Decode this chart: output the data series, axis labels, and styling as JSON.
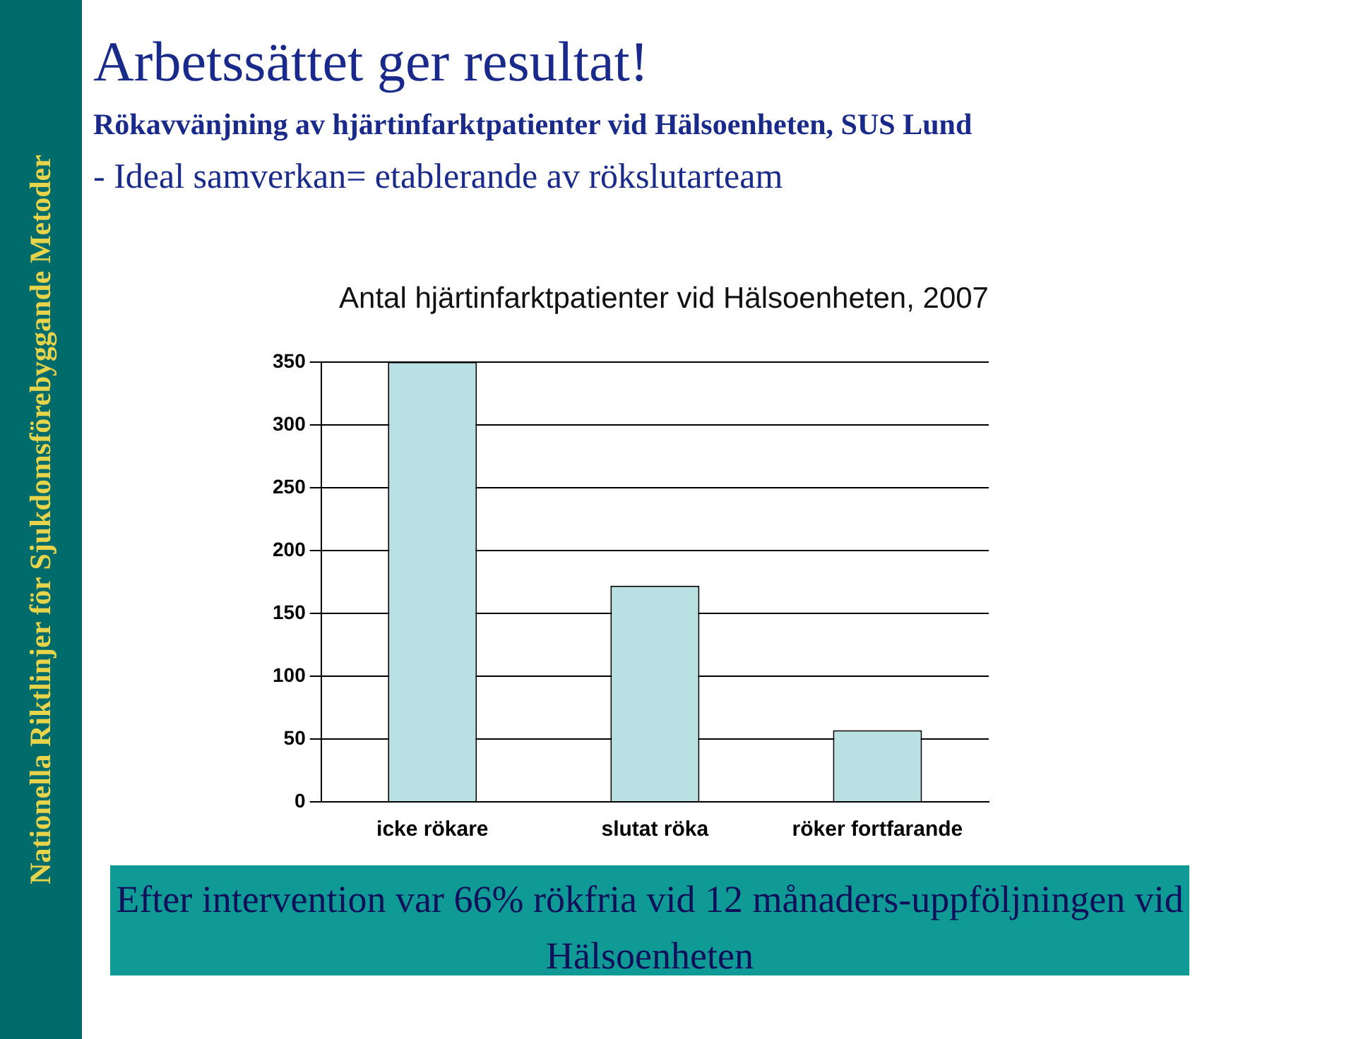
{
  "chart_data": {
    "type": "bar",
    "title": "Antal hjärtinfarktpatienter vid Hälsoenheten, 2007",
    "categories": [
      "icke rökare",
      "slutat röka",
      "röker fortfarande"
    ],
    "values": [
      350,
      172,
      57
    ],
    "color": "#b9e0e2",
    "ylim": [
      0,
      350
    ],
    "yticks": [
      0,
      50,
      100,
      150,
      200,
      250,
      300,
      350
    ],
    "grid": "y",
    "legend": false,
    "annotations": [
      "Nationella Riktlinjer för Sjukdomsförebyggande Metoder",
      "Arbetssättet ger resultat!",
      "Rökavvänjning av hjärtinfarktpatienter vid Hälsoenheten, SUS Lund",
      "- Ideal samverkan= etablerande av rökslutarteam",
      "Efter intervention var 66% rökfria vid 12 månaders-uppföljningen vid Hälsoenheten"
    ]
  }
}
